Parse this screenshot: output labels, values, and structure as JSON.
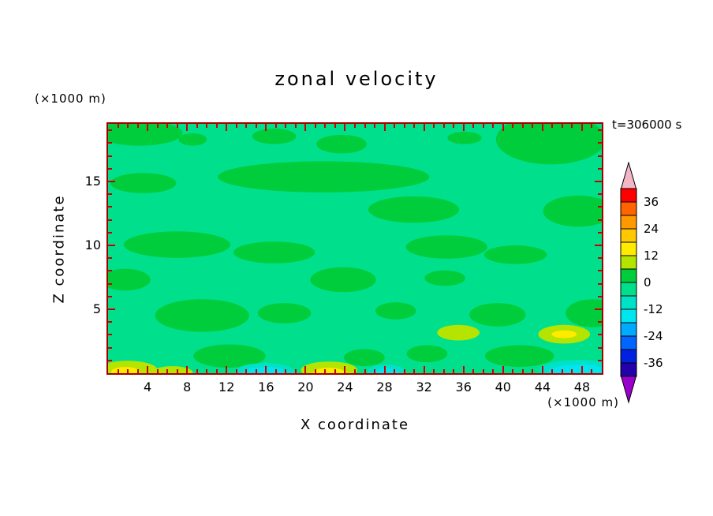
{
  "title": "zonal velocity",
  "timestamp_label": "t=306000 s",
  "axes": {
    "x": {
      "label": "X coordinate",
      "unit": "(×1000 m)",
      "min": 0,
      "max": 50,
      "major_ticks": [
        4,
        8,
        12,
        16,
        20,
        24,
        28,
        32,
        36,
        40,
        44,
        48
      ],
      "minor_step": 1
    },
    "y": {
      "label": "Z coordinate",
      "unit": "(×1000 m)",
      "min": 0,
      "max": 19.5,
      "major_ticks": [
        5,
        10,
        15
      ],
      "minor_step": 1
    }
  },
  "chart_data": {
    "type": "heatmap",
    "subtype": "filled-contour",
    "title": "zonal velocity",
    "time_label": "t=306000 s",
    "xlabel": "X coordinate (×1000 m)",
    "ylabel": "Z coordinate (×1000 m)",
    "x_range": [
      0,
      50
    ],
    "y_range": [
      0,
      19.5
    ],
    "contour_interval": 6,
    "levels": [
      -42,
      -36,
      -30,
      -24,
      -18,
      -12,
      -6,
      0,
      6,
      12,
      18,
      24,
      30,
      36,
      42
    ],
    "observed_levels": [
      "-18 to -12",
      "-12 to -6",
      "-6 to 0",
      "0 to 6",
      "6 to 12",
      "12 to 18"
    ],
    "colorbar": {
      "tick_labels": [
        "36",
        "24",
        "12",
        "0",
        "-12",
        "-24",
        "-36"
      ],
      "segment_colors": [
        "#FF0000",
        "#FF6400",
        "#FF9900",
        "#FFC800",
        "#FFEB00",
        "#B4E400",
        "#00CD3C",
        "#00E08C",
        "#00E2C8",
        "#00E5EE",
        "#00AAFF",
        "#0066FF",
        "#0022E0",
        "#2200AA"
      ],
      "arrow_top_color": "#F2B6C6",
      "arrow_bottom_color": "#9900CC",
      "outline_color": "#000000"
    },
    "frame_color": "#a00000",
    "tick_color": "#c80000",
    "field": {
      "background_level": "-6 to 0",
      "background_color": "#00E08C",
      "patches": [
        {
          "level": "0 to 6",
          "color": "#00CD3C",
          "blobs": [
            [
              40,
              12,
              55,
              16
            ],
            [
              108,
              20,
              18,
              8
            ],
            [
              212,
              16,
              28,
              10
            ],
            [
              298,
              26,
              32,
              12
            ],
            [
              565,
              20,
              70,
              32
            ],
            [
              455,
              18,
              22,
              8
            ],
            [
              275,
              68,
              135,
              20
            ],
            [
              45,
              76,
              42,
              13
            ],
            [
              390,
              110,
              58,
              17
            ],
            [
              600,
              112,
              45,
              20
            ],
            [
              88,
              155,
              68,
              17
            ],
            [
              212,
              165,
              52,
              14
            ],
            [
              432,
              158,
              52,
              15
            ],
            [
              520,
              168,
              40,
              12
            ],
            [
              22,
              200,
              32,
              14
            ],
            [
              300,
              200,
              42,
              16
            ],
            [
              430,
              198,
              26,
              10
            ],
            [
              120,
              246,
              60,
              21
            ],
            [
              225,
              243,
              34,
              13
            ],
            [
              367,
              240,
              26,
              11
            ],
            [
              497,
              245,
              36,
              15
            ],
            [
              618,
              243,
              34,
              18
            ],
            [
              155,
              298,
              46,
              15
            ],
            [
              327,
              300,
              26,
              11
            ],
            [
              407,
              295,
              26,
              11
            ],
            [
              525,
              298,
              44,
              14
            ]
          ]
        },
        {
          "level": "-12 to -6",
          "color": "#00E2C8",
          "blobs": [
            [
              200,
              318,
              38,
              11
            ],
            [
              355,
              318,
              24,
              9
            ],
            [
              600,
              316,
              50,
              13
            ]
          ]
        },
        {
          "level": "-18 to -12",
          "color": "#00E5EE",
          "blobs": [
            [
              200,
              320,
              28,
              8
            ],
            [
              355,
              320,
              16,
              6
            ],
            [
              600,
              318,
              38,
              9
            ]
          ]
        },
        {
          "level": "6 to 12",
          "color": "#B4E400",
          "blobs": [
            [
              25,
              316,
              38,
              12
            ],
            [
              82,
              319,
              26,
              8
            ],
            [
              282,
              316,
              36,
              11
            ],
            [
              447,
              268,
              27,
              10
            ],
            [
              582,
              270,
              33,
              12
            ]
          ]
        },
        {
          "level": "12 to 18",
          "color": "#FFEB00",
          "blobs": [
            [
              282,
              319,
              20,
              6
            ],
            [
              582,
              270,
              16,
              5
            ],
            [
              22,
              318,
              18,
              6
            ]
          ]
        }
      ]
    }
  }
}
